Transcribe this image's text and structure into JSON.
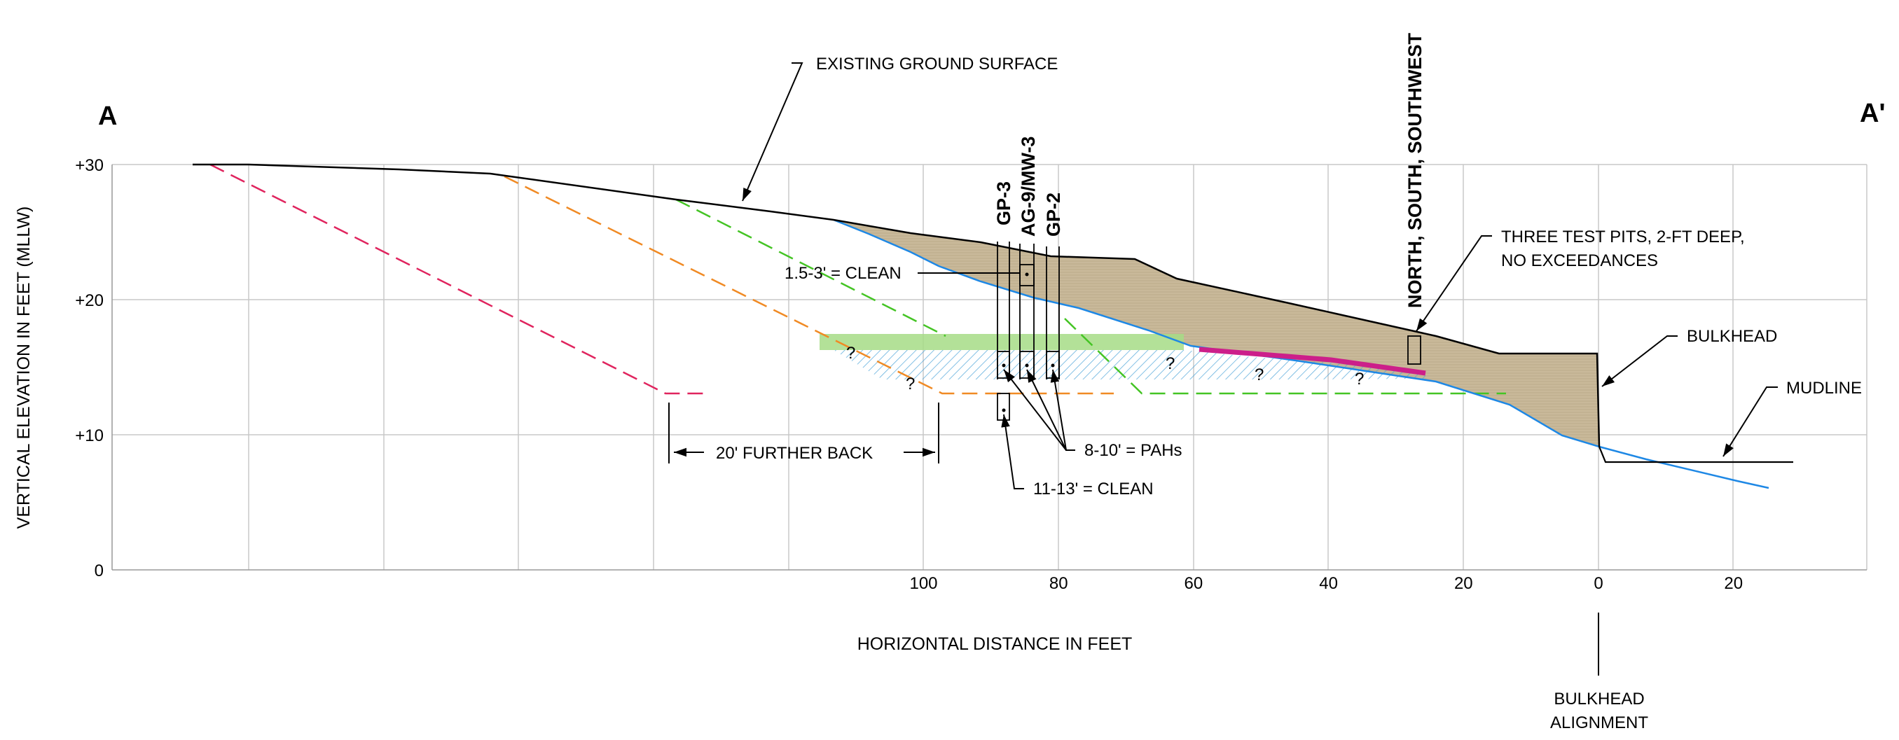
{
  "section": {
    "corner_left": "A",
    "corner_right": "A'",
    "x_axis_title": "HORIZONTAL DISTANCE IN FEET",
    "y_axis_title": "VERTICAL ELEVATION IN FEET (MLLW)",
    "x_ticks": [
      {
        "value": 100,
        "label": "100"
      },
      {
        "value": 80,
        "label": "80"
      },
      {
        "value": 60,
        "label": "60"
      },
      {
        "value": 40,
        "label": "40"
      },
      {
        "value": 20,
        "label": "20"
      },
      {
        "value": 0,
        "label": "0"
      },
      {
        "value": -20,
        "label": "20"
      }
    ],
    "y_ticks": [
      {
        "value": 30,
        "label": "+30"
      },
      {
        "value": 20,
        "label": "+20"
      },
      {
        "value": 10,
        "label": "+10"
      },
      {
        "value": 0,
        "label": "0"
      }
    ],
    "borings": [
      "GP-3",
      "AG-9/MW-3",
      "GP-2"
    ],
    "test_pits_label": "NORTH, SOUTH, SOUTHWEST",
    "callouts": {
      "ground": "EXISTING GROUND SURFACE",
      "clean_upper": "1.5-3' = CLEAN",
      "test_pits_1": "THREE TEST PITS, 2-FT DEEP,",
      "test_pits_2": "NO EXCEEDANCES",
      "bulkhead": "BULKHEAD",
      "mudline": "MUDLINE",
      "pahs": "8-10' = PAHs",
      "clean_lower": "11-13' = CLEAN",
      "further_back": "20' FURTHER BACK",
      "alignment_1": "BULKHEAD",
      "alignment_2": "ALIGNMENT"
    },
    "question_mark": "?",
    "colors": {
      "fill": "#c9b99a",
      "ground_line": "#000000",
      "blue_line": "#1e88e5",
      "red_dash": "#e0245e",
      "orange_dash": "#f08a24",
      "green_dash": "#44c424",
      "green_band": "#a6dc86",
      "hatch": "#4aa3d8",
      "magenta": "#cc1f8a"
    }
  }
}
